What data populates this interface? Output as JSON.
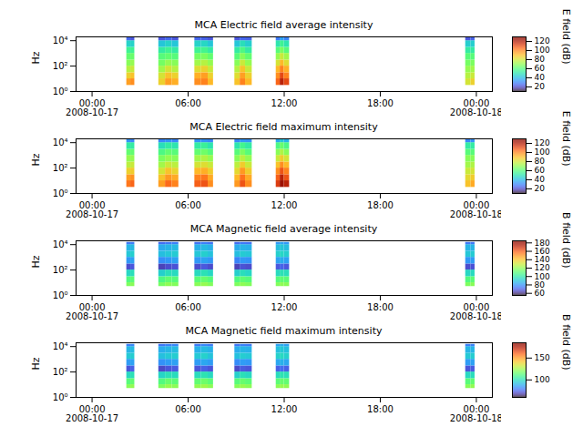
{
  "chart_data": [
    {
      "type": "heatmap",
      "title": "MCA  Electric field average intensity",
      "ylabel": "Hz",
      "colorbar_label": "E field (dB)",
      "log": "y",
      "xlim": [
        "2008-10-16T23:00",
        "2008-10-18T01:00"
      ],
      "xticks": [
        {
          "value": "2008-10-17T00:00",
          "label": "00:00\n2008-10-17"
        },
        {
          "value": "2008-10-17T06:00",
          "label": "06:00"
        },
        {
          "value": "2008-10-17T12:00",
          "label": "12:00"
        },
        {
          "value": "2008-10-17T18:00",
          "label": "18:00"
        },
        {
          "value": "2008-10-18T00:00",
          "label": "00:00\n2008-10-18"
        }
      ],
      "ylim": [
        1,
        20000
      ],
      "yticks": [
        {
          "value": 1,
          "label": "10⁰"
        },
        {
          "value": 100,
          "label": "10²"
        },
        {
          "value": 10000,
          "label": "10⁴"
        }
      ],
      "colorbar_lim": [
        10,
        130
      ],
      "colorbar_ticks": [
        20,
        40,
        60,
        80,
        100,
        120
      ],
      "x_bins": [
        [
          "2008-10-17T02:10",
          "2008-10-17T02:25"
        ],
        [
          "2008-10-17T02:25",
          "2008-10-17T02:40"
        ],
        [
          "2008-10-17T04:10",
          "2008-10-17T04:35"
        ],
        [
          "2008-10-17T04:35",
          "2008-10-17T05:00"
        ],
        [
          "2008-10-17T05:00",
          "2008-10-17T05:25"
        ],
        [
          "2008-10-17T06:25",
          "2008-10-17T06:50"
        ],
        [
          "2008-10-17T06:50",
          "2008-10-17T07:15"
        ],
        [
          "2008-10-17T07:15",
          "2008-10-17T07:35"
        ],
        [
          "2008-10-17T08:55",
          "2008-10-17T09:15"
        ],
        [
          "2008-10-17T09:15",
          "2008-10-17T09:35"
        ],
        [
          "2008-10-17T09:35",
          "2008-10-17T10:00"
        ],
        [
          "2008-10-17T11:30",
          "2008-10-17T11:45"
        ],
        [
          "2008-10-17T11:45",
          "2008-10-17T12:00"
        ],
        [
          "2008-10-17T12:00",
          "2008-10-17T12:20"
        ],
        [
          "2008-10-17T23:20",
          "2008-10-17T23:40"
        ],
        [
          "2008-10-17T23:40",
          "2008-10-17T23:55"
        ]
      ],
      "y_bins": [
        3,
        10,
        30,
        100,
        300,
        1000,
        3000,
        10000,
        20000
      ],
      "cells": [
        [
          95,
          85,
          75,
          68,
          62,
          55,
          45,
          25
        ],
        [
          98,
          88,
          78,
          70,
          63,
          55,
          45,
          22
        ],
        [
          85,
          80,
          72,
          65,
          60,
          52,
          42,
          22
        ],
        [
          95,
          88,
          80,
          70,
          62,
          55,
          45,
          25
        ],
        [
          92,
          85,
          75,
          68,
          60,
          52,
          42,
          22
        ],
        [
          98,
          92,
          82,
          72,
          65,
          55,
          45,
          25
        ],
        [
          100,
          95,
          85,
          75,
          66,
          56,
          46,
          24
        ],
        [
          90,
          85,
          78,
          70,
          62,
          52,
          42,
          22
        ],
        [
          88,
          82,
          75,
          68,
          60,
          52,
          42,
          22
        ],
        [
          100,
          95,
          88,
          78,
          68,
          58,
          48,
          25
        ],
        [
          90,
          85,
          78,
          70,
          62,
          52,
          44,
          24
        ],
        [
          105,
          98,
          90,
          80,
          70,
          60,
          50,
          28
        ],
        [
          118,
          110,
          100,
          90,
          78,
          66,
          55,
          35
        ],
        [
          110,
          100,
          92,
          82,
          72,
          60,
          50,
          30
        ],
        [
          80,
          75,
          70,
          65,
          60,
          52,
          44,
          22
        ],
        [
          85,
          78,
          72,
          66,
          60,
          52,
          44,
          24
        ]
      ]
    },
    {
      "type": "heatmap",
      "title": "MCA  Electric field maximum intensity",
      "ylabel": "Hz",
      "colorbar_label": "E field (dB)",
      "log": "y",
      "xlim": [
        "2008-10-16T23:00",
        "2008-10-18T01:00"
      ],
      "xticks": [
        {
          "value": "2008-10-17T00:00",
          "label": "00:00\n2008-10-17"
        },
        {
          "value": "2008-10-17T06:00",
          "label": "06:00"
        },
        {
          "value": "2008-10-17T12:00",
          "label": "12:00"
        },
        {
          "value": "2008-10-17T18:00",
          "label": "18:00"
        },
        {
          "value": "2008-10-18T00:00",
          "label": "00:00\n2008-10-18"
        }
      ],
      "ylim": [
        1,
        20000
      ],
      "yticks": [
        {
          "value": 1,
          "label": "10⁰"
        },
        {
          "value": 100,
          "label": "10²"
        },
        {
          "value": 10000,
          "label": "10⁴"
        }
      ],
      "colorbar_lim": [
        10,
        130
      ],
      "colorbar_ticks": [
        20,
        40,
        60,
        80,
        100,
        120
      ],
      "x_bins": [
        [
          "2008-10-17T02:10",
          "2008-10-17T02:25"
        ],
        [
          "2008-10-17T02:25",
          "2008-10-17T02:40"
        ],
        [
          "2008-10-17T04:10",
          "2008-10-17T04:35"
        ],
        [
          "2008-10-17T04:35",
          "2008-10-17T05:00"
        ],
        [
          "2008-10-17T05:00",
          "2008-10-17T05:25"
        ],
        [
          "2008-10-17T06:25",
          "2008-10-17T06:50"
        ],
        [
          "2008-10-17T06:50",
          "2008-10-17T07:15"
        ],
        [
          "2008-10-17T07:15",
          "2008-10-17T07:35"
        ],
        [
          "2008-10-17T08:55",
          "2008-10-17T09:15"
        ],
        [
          "2008-10-17T09:15",
          "2008-10-17T09:35"
        ],
        [
          "2008-10-17T09:35",
          "2008-10-17T10:00"
        ],
        [
          "2008-10-17T11:30",
          "2008-10-17T11:45"
        ],
        [
          "2008-10-17T11:45",
          "2008-10-17T12:00"
        ],
        [
          "2008-10-17T12:00",
          "2008-10-17T12:20"
        ],
        [
          "2008-10-17T23:20",
          "2008-10-17T23:40"
        ],
        [
          "2008-10-17T23:40",
          "2008-10-17T23:55"
        ]
      ],
      "y_bins": [
        3,
        10,
        30,
        100,
        300,
        1000,
        3000,
        10000,
        20000
      ],
      "cells": [
        [
          102,
          95,
          85,
          76,
          70,
          62,
          52,
          32
        ],
        [
          105,
          97,
          86,
          78,
          70,
          62,
          52,
          30
        ],
        [
          95,
          88,
          80,
          72,
          66,
          58,
          48,
          30
        ],
        [
          104,
          96,
          88,
          78,
          70,
          62,
          52,
          32
        ],
        [
          100,
          93,
          84,
          76,
          68,
          60,
          50,
          30
        ],
        [
          106,
          100,
          90,
          80,
          72,
          62,
          52,
          32
        ],
        [
          108,
          102,
          92,
          82,
          74,
          64,
          54,
          32
        ],
        [
          98,
          93,
          86,
          78,
          70,
          60,
          50,
          30
        ],
        [
          96,
          90,
          83,
          76,
          68,
          60,
          50,
          30
        ],
        [
          108,
          103,
          96,
          86,
          76,
          66,
          56,
          33
        ],
        [
          98,
          93,
          86,
          78,
          70,
          60,
          52,
          32
        ],
        [
          112,
          106,
          98,
          88,
          78,
          68,
          58,
          36
        ],
        [
          124,
          118,
          108,
          98,
          86,
          74,
          63,
          42
        ],
        [
          118,
          108,
          100,
          90,
          80,
          68,
          58,
          38
        ],
        [
          88,
          83,
          78,
          72,
          68,
          60,
          52,
          30
        ],
        [
          93,
          86,
          80,
          74,
          68,
          60,
          52,
          32
        ]
      ]
    },
    {
      "type": "heatmap",
      "title": "MCA  Magnetic field average intensity",
      "ylabel": "Hz",
      "colorbar_label": "B field (dB)",
      "log": "y",
      "xlim": [
        "2008-10-16T23:00",
        "2008-10-18T01:00"
      ],
      "xticks": [
        {
          "value": "2008-10-17T00:00",
          "label": "00:00\n2008-10-17"
        },
        {
          "value": "2008-10-17T06:00",
          "label": "06:00"
        },
        {
          "value": "2008-10-17T12:00",
          "label": "12:00"
        },
        {
          "value": "2008-10-17T18:00",
          "label": "18:00"
        },
        {
          "value": "2008-10-18T00:00",
          "label": "00:00\n2008-10-18"
        }
      ],
      "ylim": [
        1,
        20000
      ],
      "yticks": [
        {
          "value": 1,
          "label": "10⁰"
        },
        {
          "value": 100,
          "label": "10²"
        },
        {
          "value": 10000,
          "label": "10⁴"
        }
      ],
      "colorbar_lim": [
        55,
        185
      ],
      "colorbar_ticks": [
        60,
        80,
        100,
        120,
        140,
        160,
        180
      ],
      "x_bins": [
        [
          "2008-10-17T02:10",
          "2008-10-17T02:25"
        ],
        [
          "2008-10-17T02:25",
          "2008-10-17T02:40"
        ],
        [
          "2008-10-17T04:10",
          "2008-10-17T04:35"
        ],
        [
          "2008-10-17T04:35",
          "2008-10-17T05:00"
        ],
        [
          "2008-10-17T05:00",
          "2008-10-17T05:25"
        ],
        [
          "2008-10-17T06:25",
          "2008-10-17T06:50"
        ],
        [
          "2008-10-17T06:50",
          "2008-10-17T07:15"
        ],
        [
          "2008-10-17T07:15",
          "2008-10-17T07:35"
        ],
        [
          "2008-10-17T08:55",
          "2008-10-17T09:15"
        ],
        [
          "2008-10-17T09:15",
          "2008-10-17T09:35"
        ],
        [
          "2008-10-17T09:35",
          "2008-10-17T10:00"
        ],
        [
          "2008-10-17T11:30",
          "2008-10-17T11:45"
        ],
        [
          "2008-10-17T11:45",
          "2008-10-17T12:00"
        ],
        [
          "2008-10-17T12:00",
          "2008-10-17T12:20"
        ],
        [
          "2008-10-17T23:20",
          "2008-10-17T23:40"
        ],
        [
          "2008-10-17T23:40",
          "2008-10-17T23:55"
        ]
      ],
      "y_bins": [
        5,
        10,
        30,
        100,
        300,
        1000,
        3000,
        10000,
        15000
      ],
      "cells": [
        [
          116,
          108,
          94,
          66,
          80,
          90,
          86,
          74
        ],
        [
          118,
          110,
          96,
          68,
          82,
          92,
          87,
          75
        ],
        [
          115,
          107,
          92,
          64,
          78,
          88,
          84,
          72
        ],
        [
          119,
          111,
          96,
          66,
          80,
          90,
          86,
          74
        ],
        [
          117,
          109,
          95,
          67,
          82,
          91,
          87,
          75
        ],
        [
          118,
          110,
          95,
          66,
          80,
          90,
          85,
          73
        ],
        [
          120,
          112,
          97,
          68,
          82,
          92,
          87,
          75
        ],
        [
          117,
          109,
          94,
          66,
          80,
          89,
          85,
          73
        ],
        [
          116,
          108,
          92,
          64,
          76,
          88,
          84,
          72
        ],
        [
          119,
          111,
          96,
          67,
          80,
          91,
          86,
          74
        ],
        [
          117,
          109,
          94,
          66,
          79,
          90,
          85,
          73
        ],
        [
          117,
          109,
          95,
          68,
          82,
          92,
          88,
          80
        ],
        [
          119,
          111,
          97,
          70,
          84,
          94,
          90,
          82
        ],
        [
          118,
          110,
          96,
          68,
          82,
          92,
          88,
          80
        ],
        [
          116,
          108,
          94,
          66,
          80,
          90,
          86,
          74
        ],
        [
          118,
          110,
          95,
          67,
          81,
          91,
          86,
          74
        ]
      ]
    },
    {
      "type": "heatmap",
      "title": "MCA  Magnetic field maximum intensity",
      "ylabel": "Hz",
      "colorbar_label": "B field (dB)",
      "log": "y",
      "xlim": [
        "2008-10-16T23:00",
        "2008-10-18T01:00"
      ],
      "xticks": [
        {
          "value": "2008-10-17T00:00",
          "label": "00:00\n2008-10-17"
        },
        {
          "value": "2008-10-17T06:00",
          "label": "06:00"
        },
        {
          "value": "2008-10-17T12:00",
          "label": "12:00"
        },
        {
          "value": "2008-10-17T18:00",
          "label": "18:00"
        },
        {
          "value": "2008-10-18T00:00",
          "label": "00:00\n2008-10-18"
        }
      ],
      "ylim": [
        1,
        20000
      ],
      "yticks": [
        {
          "value": 1,
          "label": "10⁰"
        },
        {
          "value": 100,
          "label": "10²"
        },
        {
          "value": 10000,
          "label": "10⁴"
        }
      ],
      "colorbar_lim": [
        60,
        185
      ],
      "colorbar_ticks": [
        100,
        150
      ],
      "x_bins": [
        [
          "2008-10-17T02:10",
          "2008-10-17T02:25"
        ],
        [
          "2008-10-17T02:25",
          "2008-10-17T02:40"
        ],
        [
          "2008-10-17T04:10",
          "2008-10-17T04:35"
        ],
        [
          "2008-10-17T04:35",
          "2008-10-17T05:00"
        ],
        [
          "2008-10-17T05:00",
          "2008-10-17T05:25"
        ],
        [
          "2008-10-17T06:25",
          "2008-10-17T06:50"
        ],
        [
          "2008-10-17T06:50",
          "2008-10-17T07:15"
        ],
        [
          "2008-10-17T07:15",
          "2008-10-17T07:35"
        ],
        [
          "2008-10-17T08:55",
          "2008-10-17T09:15"
        ],
        [
          "2008-10-17T09:15",
          "2008-10-17T09:35"
        ],
        [
          "2008-10-17T09:35",
          "2008-10-17T10:00"
        ],
        [
          "2008-10-17T11:30",
          "2008-10-17T11:45"
        ],
        [
          "2008-10-17T11:45",
          "2008-10-17T12:00"
        ],
        [
          "2008-10-17T12:00",
          "2008-10-17T12:20"
        ],
        [
          "2008-10-17T23:20",
          "2008-10-17T23:40"
        ],
        [
          "2008-10-17T23:40",
          "2008-10-17T23:55"
        ]
      ],
      "y_bins": [
        5,
        10,
        30,
        100,
        300,
        1000,
        3000,
        10000,
        15000
      ],
      "cells": [
        [
          120,
          112,
          98,
          72,
          85,
          94,
          90,
          80
        ],
        [
          122,
          114,
          100,
          74,
          86,
          95,
          91,
          81
        ],
        [
          119,
          111,
          97,
          70,
          83,
          92,
          88,
          78
        ],
        [
          123,
          115,
          100,
          72,
          85,
          94,
          90,
          80
        ],
        [
          121,
          113,
          99,
          73,
          86,
          95,
          91,
          81
        ],
        [
          122,
          114,
          99,
          72,
          85,
          94,
          89,
          79
        ],
        [
          124,
          116,
          101,
          74,
          87,
          96,
          91,
          81
        ],
        [
          121,
          113,
          98,
          72,
          85,
          93,
          89,
          79
        ],
        [
          120,
          112,
          96,
          70,
          82,
          92,
          88,
          78
        ],
        [
          123,
          115,
          100,
          73,
          85,
          95,
          90,
          80
        ],
        [
          121,
          113,
          98,
          72,
          84,
          94,
          89,
          79
        ],
        [
          121,
          113,
          99,
          74,
          87,
          96,
          92,
          86
        ],
        [
          123,
          115,
          101,
          76,
          89,
          98,
          94,
          88
        ],
        [
          122,
          114,
          100,
          74,
          87,
          96,
          92,
          86
        ],
        [
          120,
          112,
          98,
          72,
          85,
          94,
          90,
          80
        ],
        [
          122,
          114,
          99,
          73,
          86,
          95,
          90,
          80
        ]
      ]
    }
  ]
}
